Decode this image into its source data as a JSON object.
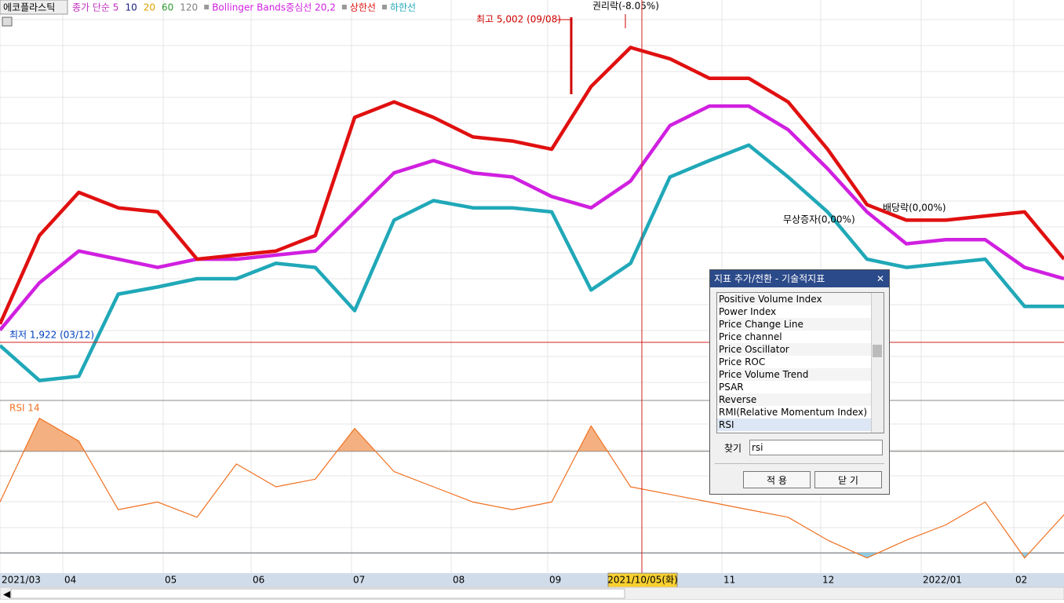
{
  "toolbar": {
    "stock": "에코플라스틱",
    "ma_legend": [
      {
        "text": "종가 단순 5",
        "color": "#c030c0"
      },
      {
        "text": "10",
        "color": "#1a237e"
      },
      {
        "text": "20",
        "color": "#e0a000"
      },
      {
        "text": "60",
        "color": "#2e9a2e"
      },
      {
        "text": "120",
        "color": "#808080"
      }
    ]
  },
  "chart_data": [
    {
      "type": "line",
      "ylim": [
        1334,
        5192
      ],
      "series": [
        {
          "name": "Bollinger Bands중심선 20,2",
          "color": "#d020e0",
          "values": [
            1980,
            2440,
            2750,
            2670,
            2590,
            2670,
            2670,
            2710,
            2750,
            3130,
            3510,
            3630,
            3510,
            3470,
            3280,
            3170,
            3430,
            3970,
            4160,
            4160,
            3930,
            3550,
            3130,
            2820,
            2860,
            2860,
            2590,
            2480
          ]
        },
        {
          "name": "상한선",
          "color": "#e01010",
          "values": [
            2040,
            2900,
            3320,
            3170,
            3130,
            2670,
            2710,
            2750,
            2900,
            4050,
            4200,
            4050,
            3860,
            3820,
            3740,
            4350,
            4730,
            4620,
            4430,
            4430,
            4200,
            3740,
            3200,
            3050,
            3050,
            3090,
            3130,
            2670
          ]
        },
        {
          "name": "하한선",
          "color": "#20a8b8",
          "values": [
            1830,
            1490,
            1530,
            2330,
            2400,
            2480,
            2480,
            2630,
            2590,
            2170,
            3050,
            3240,
            3170,
            3170,
            3130,
            2370,
            2630,
            3470,
            3630,
            3780,
            3470,
            3130,
            2670,
            2590,
            2630,
            2670,
            2210,
            2210
          ]
        }
      ],
      "annotations": [
        "최고 5,002 (09/08)",
        "권리락(-8.05%)",
        "최저 1,922 (03/12)",
        "무상증자(0,00%)",
        "배당락(0,00%)"
      ]
    },
    {
      "type": "line",
      "title": "RSI 14",
      "ylim": [
        22,
        90
      ],
      "levels": [
        70,
        30
      ],
      "series": [
        {
          "color": "#f07020",
          "values": [
            50,
            83,
            74,
            47,
            50,
            44,
            65,
            56,
            59,
            79,
            62,
            56,
            50,
            47,
            50,
            80,
            56,
            53,
            50,
            47,
            44,
            35,
            28,
            35,
            41,
            50,
            28,
            45
          ]
        }
      ]
    }
  ],
  "time_axis": {
    "labels": [
      "2021/03",
      "04",
      "05",
      "06",
      "07",
      "08",
      "09",
      "11",
      "12",
      "2022/01",
      "02"
    ],
    "cursor_label": "2021/10/05(화)"
  },
  "dialog": {
    "title": "지표 추가/전환 - 기술적지표",
    "items": [
      "Positive Volume Index",
      "Power Index",
      "Price Change Line",
      "Price channel",
      "Price Oscillator",
      "Price ROC",
      "Price Volume Trend",
      "PSAR",
      "Reverse",
      "RMI(Relative Momentum Index)",
      "RSI"
    ],
    "search_label": "찾기",
    "search_value": "rsi",
    "apply": "적 용",
    "close": "닫 기"
  }
}
